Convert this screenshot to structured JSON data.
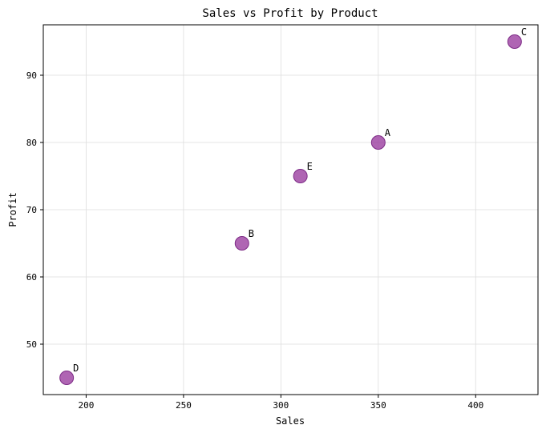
{
  "chart_data": {
    "type": "scatter",
    "title": "Sales vs Profit by Product",
    "xlabel": "Sales",
    "ylabel": "Profit",
    "xlim": [
      178,
      432
    ],
    "ylim": [
      42.5,
      97.5
    ],
    "xticks": [
      200,
      250,
      300,
      350,
      400
    ],
    "yticks": [
      50,
      60,
      70,
      80,
      90
    ],
    "grid": true,
    "marker_color": "#9b3fa0",
    "marker_edge_color": "#7d2b86",
    "points": [
      {
        "label": "A",
        "x": 350,
        "y": 80
      },
      {
        "label": "B",
        "x": 280,
        "y": 65
      },
      {
        "label": "C",
        "x": 420,
        "y": 95
      },
      {
        "label": "D",
        "x": 190,
        "y": 45
      },
      {
        "label": "E",
        "x": 310,
        "y": 75
      }
    ]
  }
}
